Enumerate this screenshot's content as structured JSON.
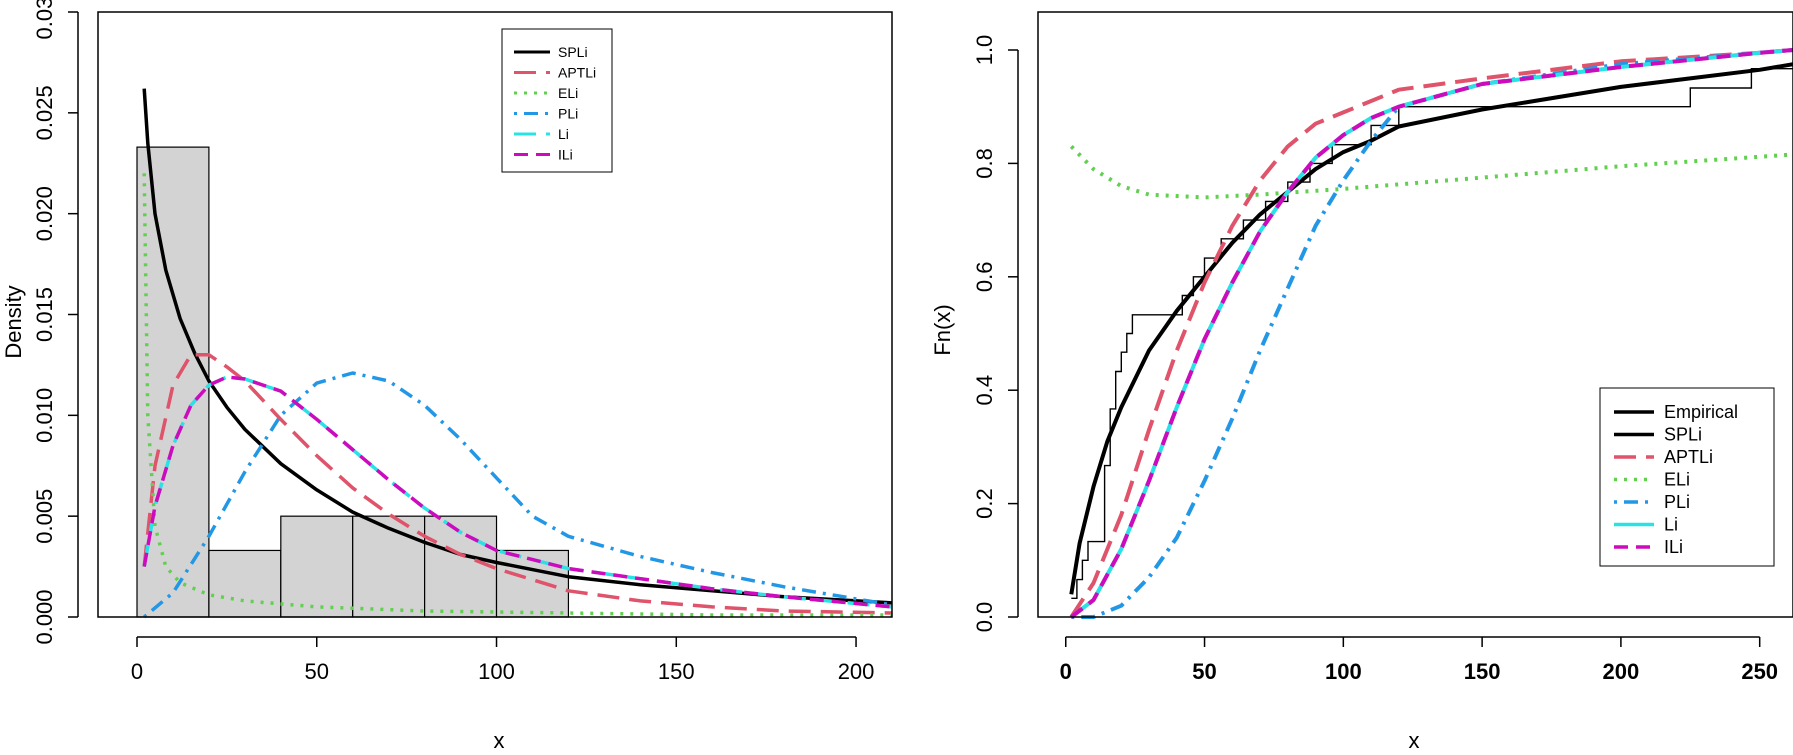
{
  "chart_data": [
    {
      "type": "histogram",
      "title": "",
      "xlabel": "x",
      "ylabel": "Density",
      "xlim": [
        0,
        210
      ],
      "ylim": [
        0,
        0.03
      ],
      "x_ticks": [
        0,
        50,
        100,
        150,
        200
      ],
      "x_tick_labels": [
        "0",
        "50",
        "100",
        "150",
        "200"
      ],
      "y_ticks": [
        0,
        0.005,
        0.01,
        0.015,
        0.02,
        0.025,
        0.03
      ],
      "y_tick_labels": [
        "0.000",
        "0.005",
        "0.010",
        "0.015",
        "0.020",
        "0.025",
        "0.030"
      ],
      "histogram": {
        "breaks": [
          0,
          20,
          40,
          60,
          80,
          100,
          120
        ],
        "density": [
          0.0233,
          0.0033,
          0.005,
          0.005,
          0.005,
          0.0033
        ],
        "fill": "#d3d3d3"
      },
      "legend_position": "top-right",
      "series": [
        {
          "name": "SPLi",
          "color": "#000000",
          "dash": "solid",
          "width": 3.5,
          "x": [
            2,
            3,
            5,
            8,
            12,
            16,
            20,
            25,
            30,
            40,
            50,
            60,
            70,
            80,
            90,
            100,
            120,
            140,
            160,
            180,
            210
          ],
          "y": [
            0.0262,
            0.0235,
            0.02,
            0.0172,
            0.0148,
            0.0131,
            0.0117,
            0.0104,
            0.0093,
            0.0076,
            0.0063,
            0.0052,
            0.0044,
            0.0037,
            0.0031,
            0.0027,
            0.002,
            0.0016,
            0.0013,
            0.001,
            0.0007
          ]
        },
        {
          "name": "APTLi",
          "color": "#df536b",
          "dash": "long-dash",
          "width": 3.5,
          "x": [
            2,
            5,
            10,
            15,
            20,
            25,
            30,
            40,
            50,
            60,
            70,
            80,
            90,
            100,
            120,
            140,
            160,
            180,
            210
          ],
          "y": [
            0.0025,
            0.0075,
            0.0115,
            0.013,
            0.013,
            0.0124,
            0.0117,
            0.0098,
            0.008,
            0.0064,
            0.0051,
            0.004,
            0.0031,
            0.0024,
            0.0013,
            0.0008,
            0.0005,
            0.0003,
            0.0002
          ]
        },
        {
          "name": "ELi",
          "color": "#61d04f",
          "dash": "dotted",
          "width": 3.5,
          "x": [
            2,
            3,
            5,
            8,
            12,
            20,
            30,
            50,
            80,
            120,
            160,
            210
          ],
          "y": [
            0.022,
            0.01,
            0.0045,
            0.0025,
            0.0017,
            0.0011,
            0.0008,
            0.0005,
            0.0003,
            0.0002,
            0.0001,
            0.0001
          ]
        },
        {
          "name": "PLi",
          "color": "#2297e6",
          "dash": "dot-dash",
          "width": 3.5,
          "x": [
            2,
            10,
            20,
            30,
            40,
            50,
            60,
            70,
            80,
            90,
            100,
            110,
            120,
            140,
            160,
            180,
            210
          ],
          "y": [
            0.0,
            0.0012,
            0.004,
            0.0072,
            0.01,
            0.0116,
            0.0121,
            0.0117,
            0.0105,
            0.0088,
            0.0069,
            0.005,
            0.004,
            0.003,
            0.0022,
            0.0015,
            0.0006
          ]
        },
        {
          "name": "Li",
          "color": "#28e2e5",
          "dash": "long-dash",
          "width": 3.5,
          "x": [
            2,
            5,
            10,
            15,
            20,
            25,
            30,
            40,
            50,
            60,
            70,
            80,
            90,
            100,
            120,
            140,
            160,
            180,
            210
          ],
          "y": [
            0.0025,
            0.0055,
            0.0085,
            0.0105,
            0.0115,
            0.0119,
            0.0118,
            0.0112,
            0.0098,
            0.0083,
            0.0068,
            0.0054,
            0.0042,
            0.0033,
            0.0024,
            0.0019,
            0.0014,
            0.001,
            0.0005
          ]
        },
        {
          "name": "ILi",
          "color": "#cd0bbc",
          "dash": "dashed",
          "width": 3.5,
          "x": [
            2,
            5,
            10,
            15,
            20,
            25,
            30,
            40,
            50,
            60,
            70,
            80,
            90,
            100,
            120,
            140,
            160,
            180,
            210
          ],
          "y": [
            0.0025,
            0.0055,
            0.0085,
            0.0105,
            0.0115,
            0.0119,
            0.0118,
            0.0112,
            0.0098,
            0.0083,
            0.0068,
            0.0054,
            0.0042,
            0.0033,
            0.0024,
            0.0019,
            0.0014,
            0.001,
            0.0005
          ]
        }
      ]
    },
    {
      "type": "line",
      "title": "",
      "xlabel": "x",
      "ylabel": "Fn(x)",
      "xlim": [
        -10,
        262
      ],
      "ylim": [
        0,
        1.0
      ],
      "x_ticks": [
        0,
        50,
        100,
        150,
        200,
        250
      ],
      "x_tick_labels": [
        "0",
        "50",
        "100",
        "150",
        "200",
        "250"
      ],
      "y_ticks": [
        0,
        0.2,
        0.4,
        0.6,
        0.8,
        1.0
      ],
      "y_tick_labels": [
        "0.0",
        "0.2",
        "0.4",
        "0.6",
        "0.8",
        "1.0"
      ],
      "legend_position": "bottom-right",
      "legend_entries": [
        "Empirical",
        "SPLi",
        "APTLi",
        "ELi",
        "PLi",
        "Li",
        "ILi"
      ],
      "empirical_step": {
        "name": "Empirical",
        "x": [
          2,
          4,
          6,
          8,
          14,
          16,
          18,
          20,
          22,
          24,
          42,
          46,
          50,
          56,
          64,
          72,
          80,
          88,
          96,
          110,
          120,
          160,
          225,
          247,
          262
        ],
        "y": [
          0.033,
          0.066,
          0.1,
          0.133,
          0.267,
          0.367,
          0.433,
          0.467,
          0.5,
          0.533,
          0.567,
          0.6,
          0.633,
          0.667,
          0.7,
          0.733,
          0.767,
          0.8,
          0.833,
          0.867,
          0.9,
          0.9,
          0.933,
          0.967,
          0.967
        ]
      },
      "series": [
        {
          "name": "SPLi",
          "color": "#000000",
          "dash": "solid",
          "width": 4,
          "x": [
            2,
            5,
            10,
            15,
            20,
            30,
            40,
            50,
            60,
            70,
            80,
            90,
            100,
            110,
            120,
            150,
            200,
            250,
            262
          ],
          "y": [
            0.04,
            0.13,
            0.23,
            0.31,
            0.37,
            0.47,
            0.54,
            0.6,
            0.66,
            0.71,
            0.75,
            0.79,
            0.82,
            0.84,
            0.865,
            0.895,
            0.935,
            0.965,
            0.975
          ]
        },
        {
          "name": "APTLi",
          "color": "#df536b",
          "dash": "long-dash",
          "width": 4,
          "x": [
            2,
            10,
            20,
            30,
            40,
            50,
            60,
            70,
            80,
            90,
            100,
            120,
            150,
            200,
            250,
            262
          ],
          "y": [
            0.0,
            0.06,
            0.18,
            0.33,
            0.47,
            0.59,
            0.69,
            0.77,
            0.83,
            0.87,
            0.89,
            0.93,
            0.95,
            0.98,
            0.995,
            1.0
          ]
        },
        {
          "name": "ELi",
          "color": "#61d04f",
          "dash": "dotted",
          "width": 4,
          "x": [
            2,
            10,
            20,
            30,
            50,
            70,
            100,
            150,
            200,
            260
          ],
          "y": [
            0.83,
            0.79,
            0.76,
            0.745,
            0.74,
            0.745,
            0.755,
            0.775,
            0.795,
            0.815
          ]
        },
        {
          "name": "PLi",
          "color": "#2297e6",
          "dash": "dot-dash",
          "width": 4,
          "x": [
            2,
            10,
            20,
            30,
            40,
            50,
            60,
            70,
            80,
            90,
            100,
            110,
            120,
            150,
            200,
            250,
            262
          ],
          "y": [
            0.0,
            0.0,
            0.02,
            0.07,
            0.14,
            0.24,
            0.35,
            0.47,
            0.58,
            0.69,
            0.77,
            0.84,
            0.9,
            0.94,
            0.975,
            0.995,
            1.0
          ]
        },
        {
          "name": "Li",
          "color": "#28e2e5",
          "dash": "solid",
          "width": 4,
          "x": [
            2,
            10,
            20,
            30,
            40,
            50,
            60,
            70,
            80,
            90,
            100,
            110,
            120,
            150,
            200,
            250,
            262
          ],
          "y": [
            0.0,
            0.03,
            0.12,
            0.24,
            0.37,
            0.49,
            0.59,
            0.68,
            0.75,
            0.81,
            0.85,
            0.88,
            0.9,
            0.94,
            0.97,
            0.995,
            1.0
          ]
        },
        {
          "name": "ILi",
          "color": "#cd0bbc",
          "dash": "dashed",
          "width": 4,
          "x": [
            2,
            10,
            20,
            30,
            40,
            50,
            60,
            70,
            80,
            90,
            100,
            110,
            120,
            150,
            200,
            250,
            262
          ],
          "y": [
            0.0,
            0.03,
            0.12,
            0.24,
            0.37,
            0.49,
            0.59,
            0.68,
            0.75,
            0.81,
            0.85,
            0.88,
            0.9,
            0.94,
            0.97,
            0.995,
            1.0
          ]
        }
      ]
    }
  ]
}
